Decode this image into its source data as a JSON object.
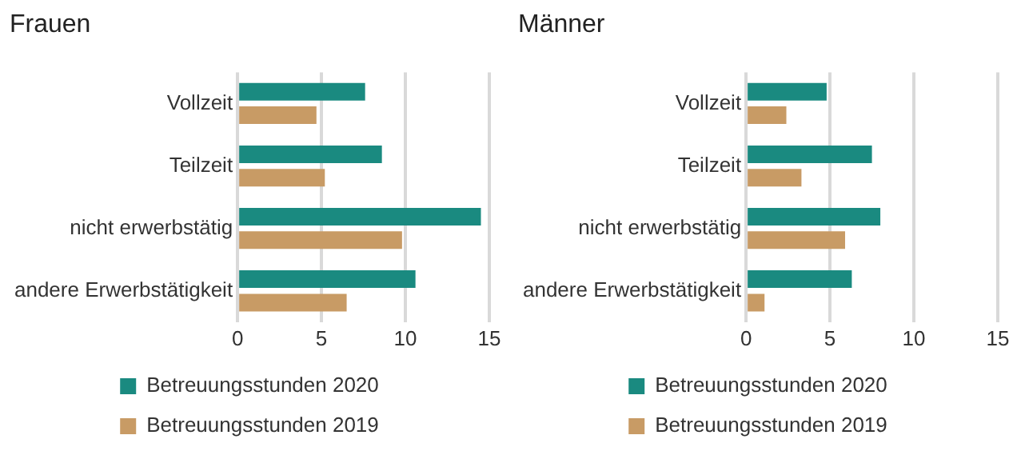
{
  "chart_data": [
    {
      "type": "bar",
      "orientation": "horizontal",
      "title": "Frauen",
      "categories": [
        "Vollzeit",
        "Teilzeit",
        "nicht erwerbstätig",
        "andere Erwerbstätigkeit"
      ],
      "series": [
        {
          "name": "Betreuungsstunden 2020",
          "color": "#1a8a80",
          "values": [
            7.6,
            8.6,
            14.5,
            10.6
          ]
        },
        {
          "name": "Betreuungsstunden 2019",
          "color": "#c89b65",
          "values": [
            4.7,
            5.2,
            9.8,
            6.5
          ]
        }
      ],
      "xlim": [
        0,
        15
      ],
      "xticks": [
        0,
        5,
        10,
        15
      ],
      "grid": "x",
      "legend": "bottom"
    },
    {
      "type": "bar",
      "orientation": "horizontal",
      "title": "Männer",
      "categories": [
        "Vollzeit",
        "Teilzeit",
        "nicht erwerbstätig",
        "andere Erwerbstätigkeit"
      ],
      "series": [
        {
          "name": "Betreuungsstunden 2020",
          "color": "#1a8a80",
          "values": [
            4.8,
            7.5,
            8.0,
            6.3
          ]
        },
        {
          "name": "Betreuungsstunden 2019",
          "color": "#c89b65",
          "values": [
            2.4,
            3.3,
            5.9,
            1.1
          ]
        }
      ],
      "xlim": [
        0,
        15
      ],
      "xticks": [
        0,
        5,
        10,
        15
      ],
      "grid": "x",
      "legend": "bottom"
    }
  ]
}
